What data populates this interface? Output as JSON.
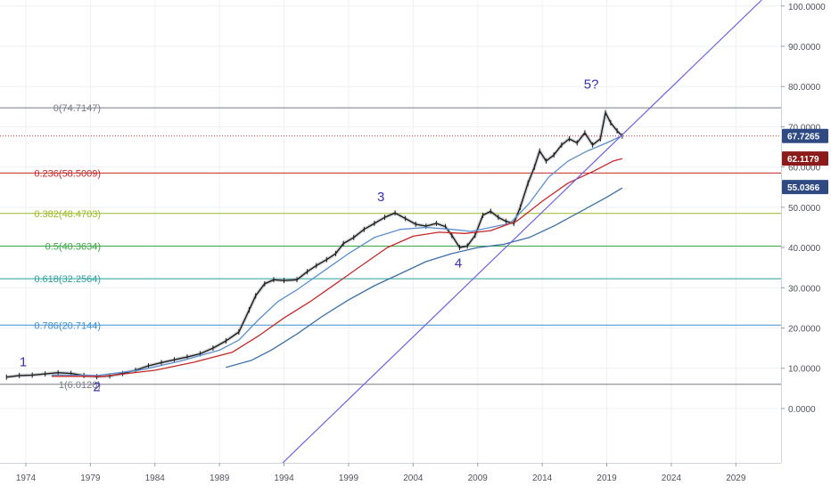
{
  "chart_data": {
    "type": "line",
    "title": "",
    "xlabel": "",
    "ylabel": "",
    "x_ticks": [
      "1974",
      "1979",
      "1984",
      "1989",
      "1994",
      "1999",
      "2004",
      "2009",
      "2014",
      "2019",
      "2024",
      "2029"
    ],
    "x_range": [
      1972.0,
      2032.5
    ],
    "y_ticks": [
      "100.0000",
      "90.0000",
      "80.0000",
      "70.0000",
      "60.0000",
      "50.0000",
      "40.0000",
      "30.0000",
      "20.0000",
      "10.0000",
      "0.0000"
    ],
    "y_range": [
      -13.5,
      101.5
    ],
    "grid": true,
    "fib_levels": [
      {
        "label": "0(74.7147)",
        "value": 74.7147,
        "color": "#787b86"
      },
      {
        "label": "0.236(58.5009)",
        "value": 58.5009,
        "color": "#c62828"
      },
      {
        "label": "0.382(48.4703)",
        "value": 48.4703,
        "color": "#9cbb25"
      },
      {
        "label": "0.5(40.3634)",
        "value": 40.3634,
        "color": "#3aa845"
      },
      {
        "label": "0.618(32.2564)",
        "value": 32.2564,
        "color": "#2aa19a"
      },
      {
        "label": "0.786(20.7144)",
        "value": 20.7144,
        "color": "#3b8fcf"
      },
      {
        "label": "1(6.0120)",
        "value": 6.012,
        "color": "#787b86"
      }
    ],
    "price_markers": [
      {
        "label": "67.7265",
        "value": 67.7265,
        "color": "#2f4a82"
      },
      {
        "label": "62.1179",
        "value": 62.1179,
        "color": "#8b1a1a"
      },
      {
        "label": "55.0366",
        "value": 55.0366,
        "color": "#2f4a82"
      }
    ],
    "current_price": 67.7265,
    "wave_labels": [
      {
        "label": "1",
        "x": 1973.8,
        "y": 10.5
      },
      {
        "label": "2",
        "x": 1979.5,
        "y": 4.3
      },
      {
        "label": "3",
        "x": 2001.5,
        "y": 51.5
      },
      {
        "label": "4",
        "x": 2007.5,
        "y": 35.0
      },
      {
        "label": "5?",
        "x": 2017.8,
        "y": 79.5
      }
    ],
    "trendline": {
      "points": [
        [
          1993.9,
          -13.5
        ],
        [
          2031.0,
          101.5
        ]
      ],
      "color": "#6c63e0"
    },
    "series": [
      {
        "style": "price",
        "color": "#1e1e1e",
        "points": [
          [
            1972.5,
            7.8
          ],
          [
            1973.5,
            8.2
          ],
          [
            1974.5,
            8.3
          ],
          [
            1975.5,
            8.6
          ],
          [
            1976.5,
            8.9
          ],
          [
            1977.5,
            8.7
          ],
          [
            1978.5,
            8.2
          ],
          [
            1979.5,
            7.9
          ],
          [
            1980.5,
            8.1
          ],
          [
            1981.5,
            8.7
          ],
          [
            1982.5,
            9.5
          ],
          [
            1983.5,
            10.6
          ],
          [
            1984.5,
            11.4
          ],
          [
            1985.5,
            12.1
          ],
          [
            1986.5,
            12.8
          ],
          [
            1987.5,
            13.6
          ],
          [
            1988.5,
            15.0
          ],
          [
            1989.5,
            16.8
          ],
          [
            1990.5,
            19.0
          ],
          [
            1991.3,
            24.5
          ],
          [
            1991.8,
            28.0
          ],
          [
            1992.5,
            31.0
          ],
          [
            1993.2,
            32.0
          ],
          [
            1994.0,
            31.8
          ],
          [
            1995.0,
            32.0
          ],
          [
            1995.8,
            34.0
          ],
          [
            1996.5,
            35.5
          ],
          [
            1997.3,
            37.0
          ],
          [
            1998.0,
            38.5
          ],
          [
            1998.6,
            41.0
          ],
          [
            1999.4,
            42.5
          ],
          [
            2000.2,
            44.5
          ],
          [
            2001.0,
            46.0
          ],
          [
            2001.8,
            47.5
          ],
          [
            2002.6,
            48.6
          ],
          [
            2003.4,
            47.2
          ],
          [
            2004.2,
            45.8
          ],
          [
            2005.0,
            45.3
          ],
          [
            2005.8,
            46.0
          ],
          [
            2006.5,
            45.2
          ],
          [
            2007.0,
            43.0
          ],
          [
            2007.6,
            40.0
          ],
          [
            2008.2,
            40.4
          ],
          [
            2008.8,
            43.0
          ],
          [
            2009.4,
            48.0
          ],
          [
            2010.0,
            49.0
          ],
          [
            2010.6,
            47.5
          ],
          [
            2011.2,
            46.5
          ],
          [
            2011.8,
            46.0
          ],
          [
            2012.3,
            50.0
          ],
          [
            2012.9,
            56.0
          ],
          [
            2013.4,
            60.0
          ],
          [
            2013.8,
            64.0
          ],
          [
            2014.3,
            61.5
          ],
          [
            2014.9,
            63.0
          ],
          [
            2015.5,
            65.5
          ],
          [
            2016.1,
            67.0
          ],
          [
            2016.7,
            66.0
          ],
          [
            2017.3,
            68.5
          ],
          [
            2017.9,
            65.5
          ],
          [
            2018.5,
            67.0
          ],
          [
            2018.9,
            73.5
          ],
          [
            2019.3,
            71.0
          ],
          [
            2019.8,
            69.0
          ],
          [
            2020.2,
            67.7
          ]
        ]
      },
      {
        "style": "ma",
        "color": "#5b8fd0",
        "points": [
          [
            1976.0,
            8.3
          ],
          [
            1979.5,
            8.2
          ],
          [
            1983.0,
            9.6
          ],
          [
            1986.0,
            11.8
          ],
          [
            1989.0,
            14.5
          ],
          [
            1990.5,
            17.0
          ],
          [
            1992.0,
            22.0
          ],
          [
            1993.5,
            26.5
          ],
          [
            1995.0,
            29.5
          ],
          [
            1997.0,
            34.0
          ],
          [
            1999.0,
            38.5
          ],
          [
            2001.0,
            42.5
          ],
          [
            2003.0,
            44.5
          ],
          [
            2005.0,
            45.0
          ],
          [
            2007.0,
            44.5
          ],
          [
            2008.5,
            44.0
          ],
          [
            2010.0,
            45.0
          ],
          [
            2011.5,
            46.0
          ],
          [
            2013.0,
            51.0
          ],
          [
            2014.5,
            57.5
          ],
          [
            2016.0,
            61.5
          ],
          [
            2017.5,
            64.0
          ],
          [
            2019.0,
            66.0
          ],
          [
            2020.2,
            67.8
          ]
        ]
      },
      {
        "style": "ma",
        "color": "#c62828",
        "points": [
          [
            1976.0,
            8.0
          ],
          [
            1980.0,
            8.0
          ],
          [
            1984.0,
            9.5
          ],
          [
            1987.0,
            11.5
          ],
          [
            1990.0,
            14.0
          ],
          [
            1992.0,
            18.0
          ],
          [
            1994.0,
            22.5
          ],
          [
            1996.0,
            26.5
          ],
          [
            1998.0,
            31.0
          ],
          [
            2000.0,
            35.5
          ],
          [
            2002.0,
            40.0
          ],
          [
            2004.0,
            42.8
          ],
          [
            2006.0,
            43.8
          ],
          [
            2008.0,
            43.5
          ],
          [
            2010.0,
            44.2
          ],
          [
            2012.0,
            46.5
          ],
          [
            2014.0,
            51.5
          ],
          [
            2016.0,
            56.0
          ],
          [
            2018.0,
            59.0
          ],
          [
            2019.5,
            61.5
          ],
          [
            2020.2,
            62.1
          ]
        ]
      },
      {
        "style": "ma",
        "color": "#3b6ea8",
        "points": [
          [
            1989.5,
            10.2
          ],
          [
            1991.5,
            12.0
          ],
          [
            1993.0,
            14.5
          ],
          [
            1995.0,
            18.5
          ],
          [
            1997.0,
            23.0
          ],
          [
            1999.0,
            27.0
          ],
          [
            2001.0,
            30.5
          ],
          [
            2003.0,
            33.5
          ],
          [
            2005.0,
            36.5
          ],
          [
            2007.0,
            38.5
          ],
          [
            2009.0,
            40.0
          ],
          [
            2011.0,
            40.8
          ],
          [
            2013.0,
            42.5
          ],
          [
            2015.0,
            45.5
          ],
          [
            2017.0,
            49.0
          ],
          [
            2019.0,
            52.5
          ],
          [
            2020.2,
            54.8
          ]
        ]
      }
    ]
  }
}
